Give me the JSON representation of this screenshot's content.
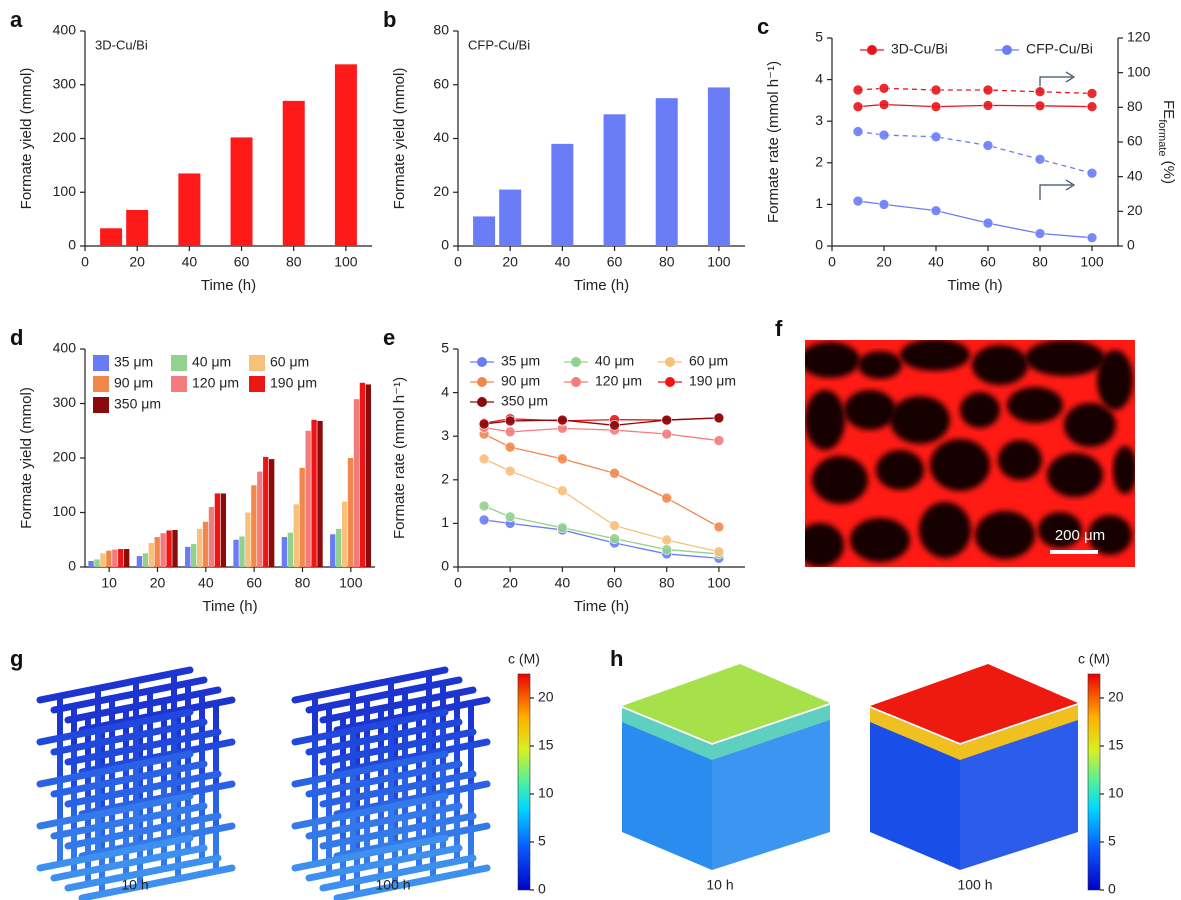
{
  "chart_data": [
    {
      "type": "bar",
      "panel": "a",
      "annotation": "3D-Cu/Bi",
      "x": [
        10,
        20,
        40,
        60,
        80,
        100
      ],
      "values": [
        33,
        67,
        135,
        202,
        270,
        338
      ],
      "color": "#ff1a1a",
      "xlim": [
        0,
        110
      ],
      "xticks": [
        0,
        20,
        40,
        60,
        80,
        100
      ],
      "ylim": [
        0,
        400
      ],
      "yticks": [
        0,
        100,
        200,
        300,
        400
      ],
      "xlabel": "Time (h)",
      "ylabel": "Formate yield (mmol)"
    },
    {
      "type": "bar",
      "panel": "b",
      "annotation": "CFP-Cu/Bi",
      "x": [
        10,
        20,
        40,
        60,
        80,
        100
      ],
      "values": [
        11,
        21,
        38,
        49,
        55,
        59
      ],
      "color": "#6b7cf7",
      "xlim": [
        0,
        110
      ],
      "xticks": [
        0,
        20,
        40,
        60,
        80,
        100
      ],
      "ylim": [
        0,
        80
      ],
      "yticks": [
        0,
        20,
        40,
        60,
        80
      ],
      "xlabel": "Time (h)",
      "ylabel": "Formate yield (mmol)"
    },
    {
      "type": "line",
      "panel": "c",
      "x": [
        10,
        20,
        40,
        60,
        80,
        100
      ],
      "series": [
        {
          "name": "3D-Cu/Bi",
          "color": "#e8141c",
          "values": [
            3.35,
            3.4,
            3.35,
            3.38,
            3.37,
            3.35
          ]
        },
        {
          "name": "CFP-Cu/Bi",
          "color": "#6b7cf7",
          "values": [
            1.08,
            1.0,
            0.85,
            0.55,
            0.3,
            0.2
          ]
        },
        {
          "color": "#e8141c",
          "axis": "y2",
          "dashed": true,
          "values": [
            90,
            91,
            90,
            90,
            89,
            88
          ]
        },
        {
          "color": "#6b7cf7",
          "axis": "y2",
          "dashed": true,
          "values": [
            66,
            64,
            63,
            58,
            50,
            42
          ]
        }
      ],
      "xlim": [
        0,
        110
      ],
      "xticks": [
        0,
        20,
        40,
        60,
        80,
        100
      ],
      "ylim": [
        0,
        5
      ],
      "yticks": [
        0,
        1,
        2,
        3,
        4,
        5
      ],
      "y2lim": [
        0,
        120
      ],
      "y2ticks": [
        0,
        20,
        40,
        60,
        80,
        100,
        120
      ],
      "xlabel": "Time (h)",
      "ylabel": "Formate rate (mmol h⁻¹)",
      "y2label": [
        "FE",
        "formate",
        " (%)"
      ],
      "legend": "top"
    },
    {
      "type": "bar",
      "panel": "d",
      "categories": [
        "10",
        "20",
        "40",
        "60",
        "80",
        "100"
      ],
      "series": [
        {
          "name": "35 μm",
          "color": "#6a7cf5",
          "values": [
            11,
            20,
            37,
            50,
            55,
            60
          ]
        },
        {
          "name": "40 μm",
          "color": "#93d18e",
          "values": [
            14,
            25,
            42,
            56,
            63,
            70
          ]
        },
        {
          "name": "60 μm",
          "color": "#f7c07b",
          "values": [
            25,
            44,
            70,
            100,
            115,
            120
          ]
        },
        {
          "name": "90 μm",
          "color": "#f2874b",
          "values": [
            30,
            55,
            83,
            150,
            182,
            200
          ]
        },
        {
          "name": "120 μm",
          "color": "#f47b7b",
          "values": [
            32,
            62,
            110,
            175,
            250,
            308
          ]
        },
        {
          "name": "190 μm",
          "color": "#ee1515",
          "values": [
            33,
            67,
            135,
            202,
            270,
            338
          ]
        },
        {
          "name": "350 μm",
          "color": "#8b0a0a",
          "values": [
            33,
            68,
            135,
            198,
            268,
            335
          ]
        }
      ],
      "ylim": [
        0,
        400
      ],
      "yticks": [
        0,
        100,
        200,
        300,
        400
      ],
      "xlabel": "Time (h)",
      "ylabel": "Formate yield (mmol)",
      "legend": "top-left"
    },
    {
      "type": "line",
      "panel": "e",
      "x": [
        10,
        20,
        40,
        60,
        80,
        100
      ],
      "series": [
        {
          "name": "35 μm",
          "color": "#6a7cf5",
          "values": [
            1.08,
            1.0,
            0.85,
            0.55,
            0.3,
            0.2
          ]
        },
        {
          "name": "40 μm",
          "color": "#93d18e",
          "values": [
            1.4,
            1.15,
            0.9,
            0.65,
            0.4,
            0.3
          ]
        },
        {
          "name": "60 μm",
          "color": "#f7c07b",
          "values": [
            2.48,
            2.2,
            1.75,
            0.95,
            0.62,
            0.35
          ]
        },
        {
          "name": "90 μm",
          "color": "#f2874b",
          "values": [
            3.05,
            2.75,
            2.48,
            2.15,
            1.58,
            0.92
          ]
        },
        {
          "name": "120 μm",
          "color": "#f47b7b",
          "values": [
            3.2,
            3.1,
            3.18,
            3.14,
            3.05,
            2.9
          ]
        },
        {
          "name": "190 μm",
          "color": "#ee1515",
          "values": [
            3.3,
            3.4,
            3.35,
            3.38,
            3.37,
            3.42
          ]
        },
        {
          "name": "350 μm",
          "color": "#8b0a0a",
          "values": [
            3.28,
            3.35,
            3.37,
            3.25,
            3.37,
            3.42
          ]
        }
      ],
      "xlim": [
        0,
        110
      ],
      "xticks": [
        0,
        20,
        40,
        60,
        80,
        100
      ],
      "ylim": [
        0,
        5
      ],
      "yticks": [
        0,
        1,
        2,
        3,
        4,
        5
      ],
      "xlabel": "Time (h)",
      "ylabel": "Formate rate (mmol h⁻¹)",
      "legend": "top-left"
    }
  ],
  "images": [
    {
      "panel": "f",
      "scale_bar": "200 μm"
    },
    {
      "panel": "g",
      "captions": [
        "10 h",
        "100 h"
      ],
      "colorbar": {
        "title": "c (M)",
        "lim": [
          0,
          22.5
        ],
        "ticks": [
          0,
          5,
          10,
          15,
          20
        ]
      }
    },
    {
      "panel": "h",
      "captions": [
        "10 h",
        "100 h"
      ],
      "colorbar": {
        "title": "c (M)",
        "lim": [
          0,
          22.5
        ],
        "ticks": [
          0,
          5,
          10,
          15,
          20
        ]
      }
    }
  ]
}
